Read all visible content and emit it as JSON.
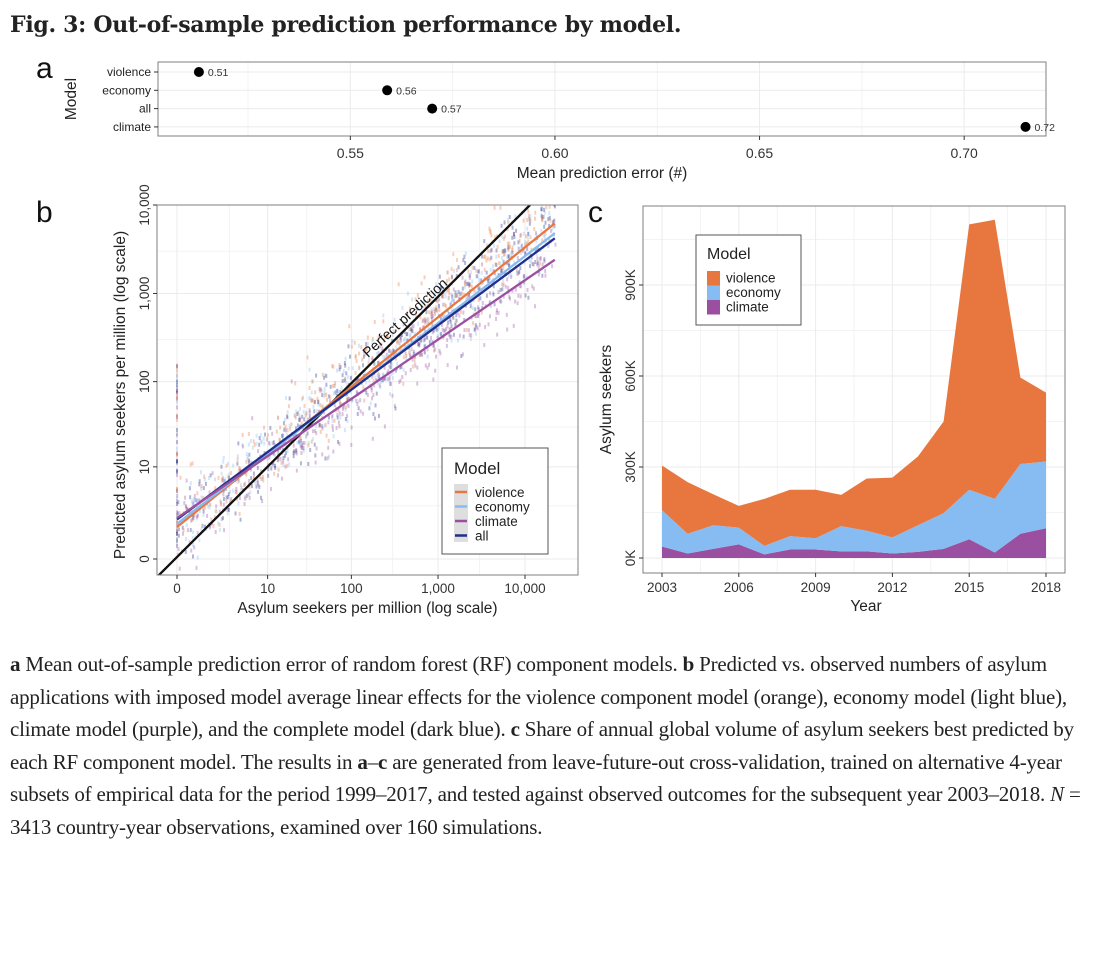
{
  "figure": {
    "title": "Fig. 3: Out-of-sample prediction performance by model.",
    "panel_labels": {
      "a": "a",
      "b": "b",
      "c": "c"
    }
  },
  "caption": {
    "parts": [
      {
        "text": "a",
        "bold": true
      },
      {
        "text": " Mean out-of-sample prediction error of random forest (RF) component models. "
      },
      {
        "text": "b",
        "bold": true
      },
      {
        "text": " Predicted vs. observed numbers of asylum applications with imposed model average linear effects for the violence component model (orange), economy model (light blue), climate model (purple), and the complete model (dark blue). "
      },
      {
        "text": "c",
        "bold": true
      },
      {
        "text": " Share of annual global volume of asylum seekers best predicted by each RF component model. The results in "
      },
      {
        "text": "a",
        "bold": true
      },
      {
        "text": "–"
      },
      {
        "text": "c",
        "bold": true
      },
      {
        "text": " are generated from leave-future-out cross-validation, trained on alternative 4-year subsets of empirical data for the period 1999–2017, and tested against observed outcomes for the subsequent year 2003–2018. "
      },
      {
        "text": "N",
        "italic": true
      },
      {
        "text": " = 3413 country-year observations, examined over 160 simulations."
      }
    ]
  },
  "colors": {
    "violence": "#e8773f",
    "economy": "#86bcf2",
    "climate": "#9b4fa0",
    "all": "#1f2f8a",
    "perfect": "#111111",
    "grid": "#ebebeb",
    "frame": "#7f7f7f"
  },
  "chart_data": [
    {
      "id": "a",
      "type": "scatter",
      "title": "",
      "xlabel": "Mean prediction error (#)",
      "ylabel": "Model",
      "categories": [
        "violence",
        "economy",
        "all",
        "climate"
      ],
      "values": [
        0.513,
        0.559,
        0.57,
        0.715
      ],
      "data_labels": [
        "0.51",
        "0.56",
        "0.57",
        "0.72"
      ],
      "xlim": [
        0.503,
        0.72
      ],
      "xticks": [
        0.55,
        0.6,
        0.65,
        0.7
      ],
      "xtick_labels": [
        "0.55",
        "0.60",
        "0.65",
        "0.70"
      ],
      "grid": true
    },
    {
      "id": "b",
      "type": "scatter",
      "xlabel": "Asylum seekers per million (log scale)",
      "ylabel": "Predicted asylum seekers per million (log scale)",
      "scale": "log1p",
      "xticks": [
        0,
        10,
        100,
        1000,
        10000
      ],
      "xtick_labels": [
        "0",
        "10",
        "100",
        "1,000",
        "10,000"
      ],
      "yticks": [
        0,
        10,
        100,
        1000,
        10000
      ],
      "ytick_labels": [
        "0",
        "10",
        "100",
        "1,000",
        "10,000"
      ],
      "xlim": [
        -0.7,
        25000
      ],
      "ylim": [
        -0.7,
        10000
      ],
      "annotation": "Perfect prediction",
      "legend": {
        "title": "Model",
        "position": "bottom-right",
        "entries": [
          "violence",
          "economy",
          "climate",
          "all"
        ]
      },
      "fit_lines": [
        {
          "name": "perfect",
          "x": [
            -0.7,
            10000
          ],
          "y": [
            -0.7,
            10000
          ]
        },
        {
          "name": "violence",
          "x": [
            0,
            22000
          ],
          "y": [
            1.3,
            6200
          ]
        },
        {
          "name": "economy",
          "x": [
            0,
            22000
          ],
          "y": [
            1.5,
            4800
          ]
        },
        {
          "name": "all",
          "x": [
            0,
            22000
          ],
          "y": [
            1.8,
            4200
          ]
        },
        {
          "name": "climate",
          "x": [
            0,
            22000
          ],
          "y": [
            1.9,
            2400
          ]
        }
      ],
      "scatter_note": "dense cloud of semi-transparent points around the fit lines for each model",
      "grid": true
    },
    {
      "id": "c",
      "type": "area",
      "stacked": true,
      "xlabel": "Year",
      "ylabel": "Asylum seekers",
      "x": [
        2003,
        2004,
        2005,
        2006,
        2007,
        2008,
        2009,
        2010,
        2011,
        2012,
        2013,
        2014,
        2015,
        2016,
        2017,
        2018
      ],
      "series": [
        {
          "name": "climate",
          "values": [
            38,
            15,
            30,
            45,
            12,
            28,
            28,
            22,
            22,
            15,
            20,
            30,
            62,
            18,
            80,
            98
          ]
        },
        {
          "name": "economy",
          "values": [
            120,
            65,
            78,
            55,
            28,
            44,
            37,
            83,
            68,
            53,
            88,
            118,
            163,
            177,
            230,
            220
          ]
        },
        {
          "name": "violence",
          "values": [
            147,
            170,
            102,
            72,
            155,
            153,
            160,
            103,
            172,
            197,
            227,
            302,
            875,
            920,
            285,
            227
          ]
        }
      ],
      "units": "thousands",
      "xticks": [
        2003,
        2006,
        2009,
        2012,
        2015,
        2018
      ],
      "xtick_labels": [
        "2003",
        "2006",
        "2009",
        "2012",
        "2015",
        "2018"
      ],
      "yticks": [
        0,
        300,
        600,
        900
      ],
      "ytick_labels": [
        "0K",
        "300K",
        "600K",
        "900K"
      ],
      "ylim": [
        -50,
        1200
      ],
      "legend": {
        "title": "Model",
        "position": "top-left",
        "entries": [
          "violence",
          "economy",
          "climate"
        ]
      },
      "grid": true
    }
  ]
}
